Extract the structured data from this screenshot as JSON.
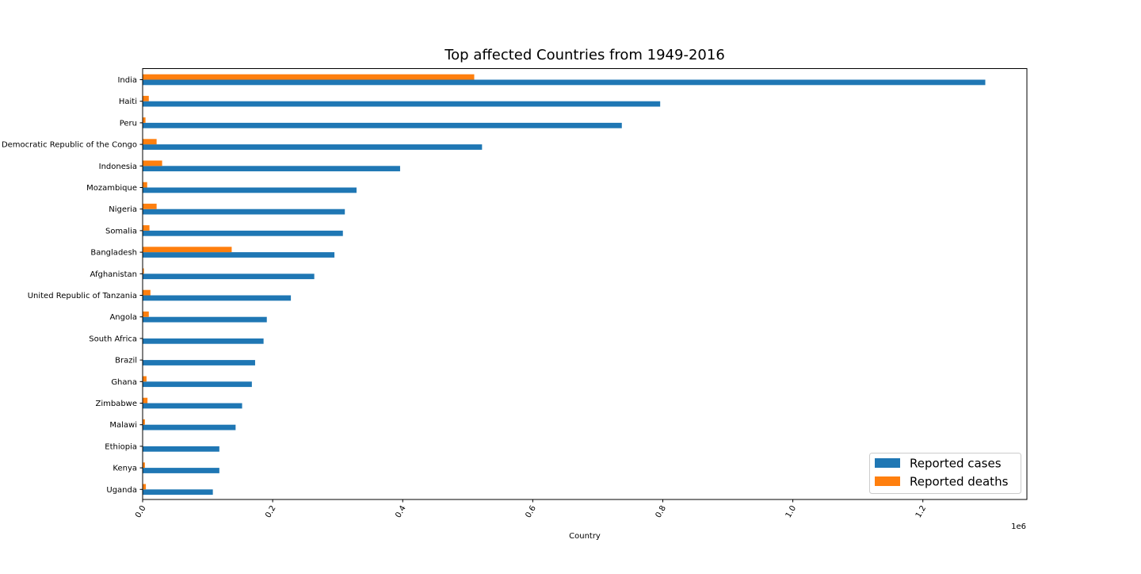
{
  "chart_data": {
    "type": "bar",
    "orientation": "horizontal",
    "title": "Top affected Countries from 1949-2016",
    "xlabel": "Country",
    "ylabel": "",
    "x_scale_label": "1e6",
    "xlim": [
      0,
      1360000
    ],
    "x_ticks": [
      0,
      200000,
      400000,
      600000,
      800000,
      1000000,
      1200000
    ],
    "x_tick_labels": [
      "0.0",
      "0.2",
      "0.4",
      "0.6",
      "0.8",
      "1.0",
      "1.2"
    ],
    "grid": false,
    "legend_position": "lower-right",
    "categories": [
      "India",
      "Haiti",
      "Peru",
      "Democratic Republic of the Congo",
      "Indonesia",
      "Mozambique",
      "Nigeria",
      "Somalia",
      "Bangladesh",
      "Afghanistan",
      "United Republic of Tanzania",
      "Angola",
      "South Africa",
      "Brazil",
      "Ghana",
      "Zimbabwe",
      "Malawi",
      "Ethiopia",
      "Kenya",
      "Uganda"
    ],
    "series": [
      {
        "name": "Reported cases",
        "color": "#1f77b4",
        "values": [
          1296000,
          796000,
          737000,
          522000,
          396000,
          329000,
          311000,
          308000,
          295000,
          264000,
          228000,
          191000,
          186000,
          173000,
          168000,
          153000,
          143000,
          118000,
          118000,
          108000
        ]
      },
      {
        "name": "Reported deaths",
        "color": "#ff7f0e",
        "values": [
          510000,
          9500,
          4400,
          21500,
          30000,
          7000,
          21500,
          10500,
          137000,
          2000,
          12000,
          9500,
          500,
          500,
          6000,
          7500,
          3500,
          500,
          3500,
          5000
        ]
      }
    ]
  }
}
